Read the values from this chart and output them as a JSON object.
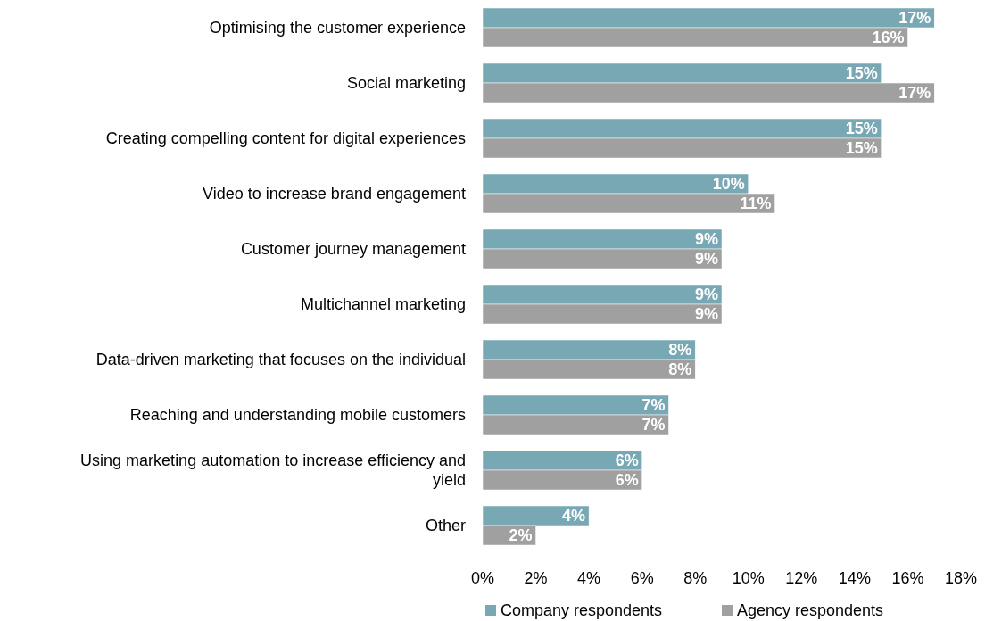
{
  "chart_data": {
    "type": "bar",
    "orientation": "horizontal",
    "categories": [
      "Optimising the customer experience",
      "Social marketing",
      "Creating compelling content for digital experiences",
      "Video to increase brand engagement",
      "Customer journey management",
      "Multichannel marketing",
      "Data-driven marketing that focuses on the individual",
      "Reaching and understanding mobile customers",
      "Using marketing automation to increase efficiency and yield",
      "Other"
    ],
    "series": [
      {
        "name": "Company respondents",
        "color": "#79a8b5",
        "values": [
          17,
          15,
          15,
          10,
          9,
          9,
          8,
          7,
          6,
          4
        ],
        "value_labels": [
          "17%",
          "15%",
          "15%",
          "10%",
          "9%",
          "9%",
          "8%",
          "7%",
          "6%",
          "4%"
        ]
      },
      {
        "name": "Agency respondents",
        "color": "#a0a0a0",
        "values": [
          16,
          17,
          15,
          11,
          9,
          9,
          8,
          7,
          6,
          2
        ],
        "value_labels": [
          "16%",
          "17%",
          "15%",
          "11%",
          "9%",
          "9%",
          "8%",
          "7%",
          "6%",
          "2%"
        ]
      }
    ],
    "xlim": [
      0,
      18
    ],
    "xticks": [
      {
        "value": 0,
        "label": "0%"
      },
      {
        "value": 2,
        "label": "2%"
      },
      {
        "value": 4,
        "label": "4%"
      },
      {
        "value": 6,
        "label": "6%"
      },
      {
        "value": 8,
        "label": "8%"
      },
      {
        "value": 10,
        "label": "10%"
      },
      {
        "value": 12,
        "label": "12%"
      },
      {
        "value": 14,
        "label": "14%"
      },
      {
        "value": 16,
        "label": "16%"
      },
      {
        "value": 18,
        "label": "18%"
      }
    ],
    "grid": false,
    "legend": "bottom"
  }
}
